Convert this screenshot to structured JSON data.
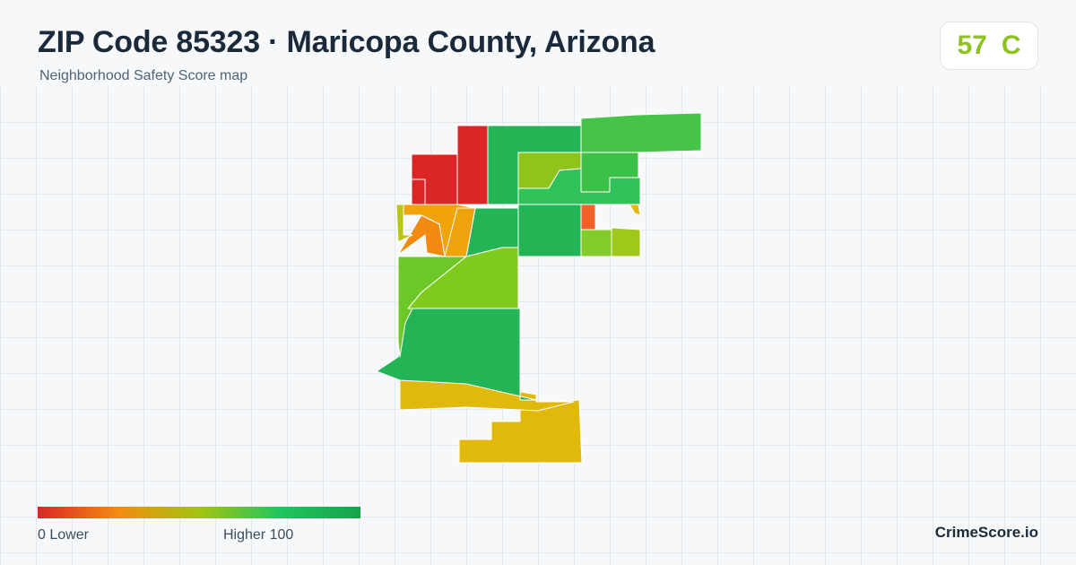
{
  "header": {
    "title": "ZIP Code 85323 · Maricopa County, Arizona",
    "subtitle": "Neighborhood Safety Score map"
  },
  "score": {
    "value": "57",
    "grade": "C",
    "color": "#8dc21f"
  },
  "map": {
    "color_scale": {
      "low": "#dc2626",
      "mid_low": "#f59e0b",
      "mid": "#a3c412",
      "high": "#16a34a"
    },
    "regions": [
      {
        "id": "nw-red-block",
        "color": "#dc2626"
      },
      {
        "id": "n-red-strip",
        "color": "#dc2626"
      },
      {
        "id": "n-green-center",
        "color": "#22b455"
      },
      {
        "id": "ne-green-top",
        "color": "#45c447"
      },
      {
        "id": "ne-yellowgreen",
        "color": "#8fc41a"
      },
      {
        "id": "ne-green-right",
        "color": "#3cc048"
      },
      {
        "id": "center-green-1",
        "color": "#2fc35a"
      },
      {
        "id": "center-green-2",
        "color": "#22b455"
      },
      {
        "id": "orange-cell",
        "color": "#f2612a"
      },
      {
        "id": "w-orange-1",
        "color": "#f0a30a"
      },
      {
        "id": "w-orange-2",
        "color": "#f28a12"
      },
      {
        "id": "w-orange-3",
        "color": "#eea20c"
      },
      {
        "id": "w-yellowgreen",
        "color": "#b8c616"
      },
      {
        "id": "e-lime-1",
        "color": "#82cc2a"
      },
      {
        "id": "e-lime-2",
        "color": "#9fc81a"
      },
      {
        "id": "e-yellow-dot",
        "color": "#e4b80e"
      },
      {
        "id": "center-green-lower",
        "color": "#22b455"
      },
      {
        "id": "mid-lime",
        "color": "#7ecb1e"
      },
      {
        "id": "w-lime",
        "color": "#6cc729"
      },
      {
        "id": "s-green-large",
        "color": "#22b455"
      },
      {
        "id": "s-yellow",
        "color": "#e0b90c"
      },
      {
        "id": "far-s-yellow",
        "color": "#e0b90c"
      }
    ]
  },
  "legend": {
    "low_label": "0  Lower",
    "high_label": "Higher  100",
    "gradient_colors": [
      "#dc2626",
      "#f28c12",
      "#a3c412",
      "#22c55e",
      "#16a34a"
    ]
  },
  "brand": "CrimeScore.io"
}
